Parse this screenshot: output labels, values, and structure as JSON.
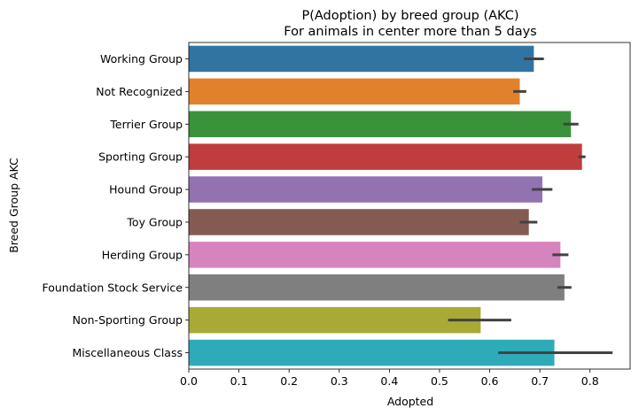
{
  "chart_data": {
    "type": "bar",
    "orientation": "horizontal",
    "title": "P(Adoption) by breed group (AKC)",
    "subtitle": "For animals in center more than 5 days",
    "xlabel": "Adopted",
    "ylabel": "Breed Group AKC",
    "xlim": [
      0,
      0.88
    ],
    "xticks": [
      "0.0",
      "0.1",
      "0.2",
      "0.3",
      "0.4",
      "0.5",
      "0.6",
      "0.7",
      "0.8"
    ],
    "grid": false,
    "categories": [
      "Working Group",
      "Not Recognized",
      "Terrier Group",
      "Sporting Group",
      "Hound Group",
      "Toy Group",
      "Herding Group",
      "Foundation Stock Service",
      "Non-Sporting Group",
      "Miscellaneous Class"
    ],
    "values": [
      0.688,
      0.66,
      0.762,
      0.784,
      0.705,
      0.678,
      0.741,
      0.749,
      0.582,
      0.729
    ],
    "error_low": [
      0.668,
      0.647,
      0.747,
      0.777,
      0.684,
      0.66,
      0.725,
      0.735,
      0.517,
      0.617
    ],
    "error_high": [
      0.708,
      0.673,
      0.777,
      0.791,
      0.725,
      0.695,
      0.757,
      0.763,
      0.643,
      0.845
    ],
    "colors": [
      "#3274a1",
      "#e1812c",
      "#3a923a",
      "#c03d3e",
      "#9372b2",
      "#845b53",
      "#d684bd",
      "#7f7f7f",
      "#a9aa35",
      "#2eabb8"
    ],
    "error_color": "#424242"
  }
}
